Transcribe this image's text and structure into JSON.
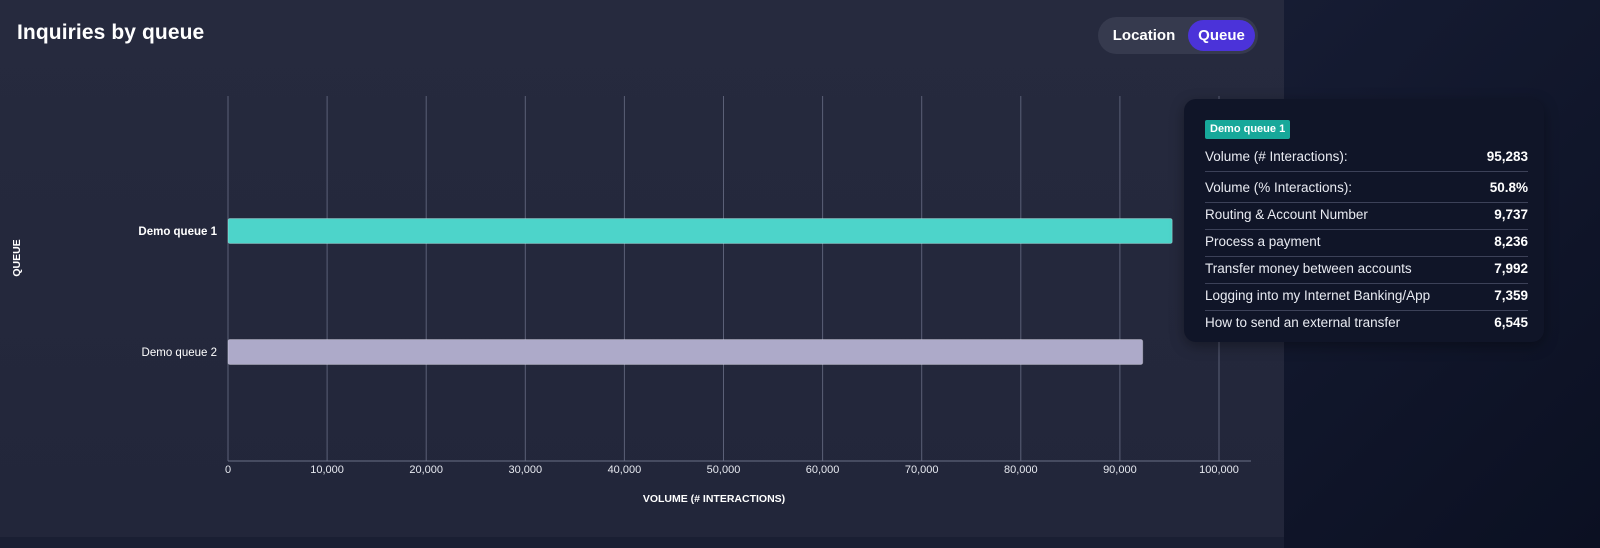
{
  "header": {
    "title": "Inquiries by queue"
  },
  "toggle": {
    "options": [
      {
        "label": "Location",
        "selected": false
      },
      {
        "label": "Queue",
        "selected": true
      }
    ],
    "active_color": "#4b33d9"
  },
  "chart_data": {
    "type": "bar",
    "orientation": "horizontal",
    "categories": [
      "Demo queue 1",
      "Demo queue 2"
    ],
    "values": [
      95283,
      92300
    ],
    "colors": [
      "#4dd4ca",
      "#adaac9"
    ],
    "xlabel": "VOLUME (# INTERACTIONS)",
    "ylabel": "QUEUE",
    "xlim": [
      0,
      100000
    ],
    "xticks": [
      "0",
      "10,000",
      "20,000",
      "30,000",
      "40,000",
      "50,000",
      "60,000",
      "70,000",
      "80,000",
      "90,000",
      "100,000"
    ],
    "grid": true,
    "highlighted_category": "Demo queue 1"
  },
  "tooltip": {
    "badge": "Demo queue 1",
    "badge_color": "#17a89a",
    "rows": [
      {
        "label": "Volume (# Interactions):",
        "value": "95,283"
      },
      {
        "label": "Volume (% Interactions):",
        "value": "50.8%"
      },
      {
        "label": "Routing & Account Number",
        "value": "9,737"
      },
      {
        "label": "Process a payment",
        "value": "8,236"
      },
      {
        "label": "Transfer money between accounts",
        "value": "7,992"
      },
      {
        "label": "Logging into my Internet Banking/App",
        "value": "7,359"
      },
      {
        "label": "How to send an external transfer",
        "value": "6,545"
      }
    ]
  }
}
